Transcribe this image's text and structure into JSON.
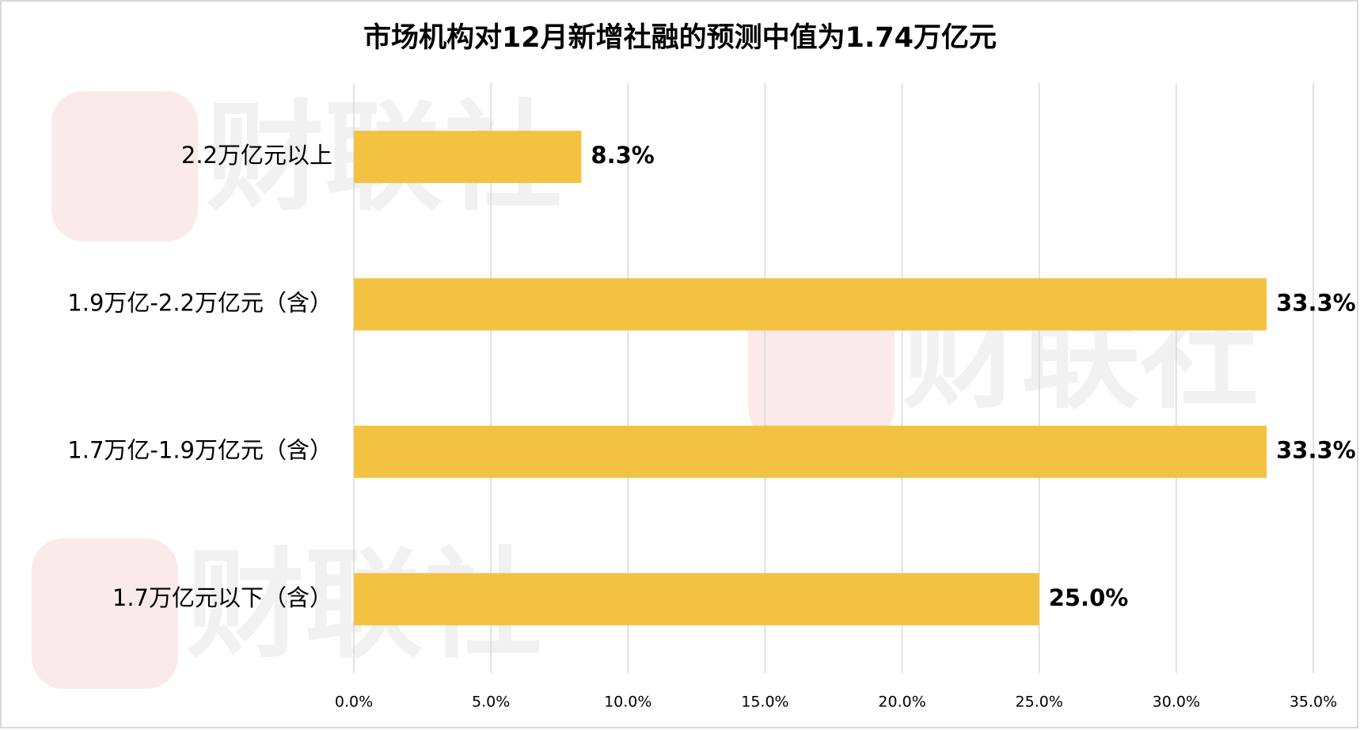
{
  "chart_data": {
    "type": "bar",
    "orientation": "horizontal",
    "title": "市场机构对12月新增社融的预测中值为1.74万亿元",
    "watermark": "财联社",
    "categories": [
      "2.2万亿元以上",
      "1.9万亿-2.2万亿元（含）",
      "1.7万亿-1.9万亿元（含）",
      "1.7万亿元以下（含）"
    ],
    "values": [
      8.3,
      33.3,
      33.3,
      25.0
    ],
    "value_labels": [
      "8.3%",
      "33.3%",
      "33.3%",
      "25.0%"
    ],
    "color": "#F4C242",
    "xlim": [
      0,
      35
    ],
    "xticks": [
      {
        "value": 0,
        "label": "0.0%"
      },
      {
        "value": 5,
        "label": "5.0%"
      },
      {
        "value": 10,
        "label": "10.0%"
      },
      {
        "value": 15,
        "label": "15.0%"
      },
      {
        "value": 20,
        "label": "20.0%"
      },
      {
        "value": 25,
        "label": "25.0%"
      },
      {
        "value": 30,
        "label": "30.0%"
      },
      {
        "value": 35,
        "label": "35.0%"
      }
    ],
    "grid": true
  }
}
